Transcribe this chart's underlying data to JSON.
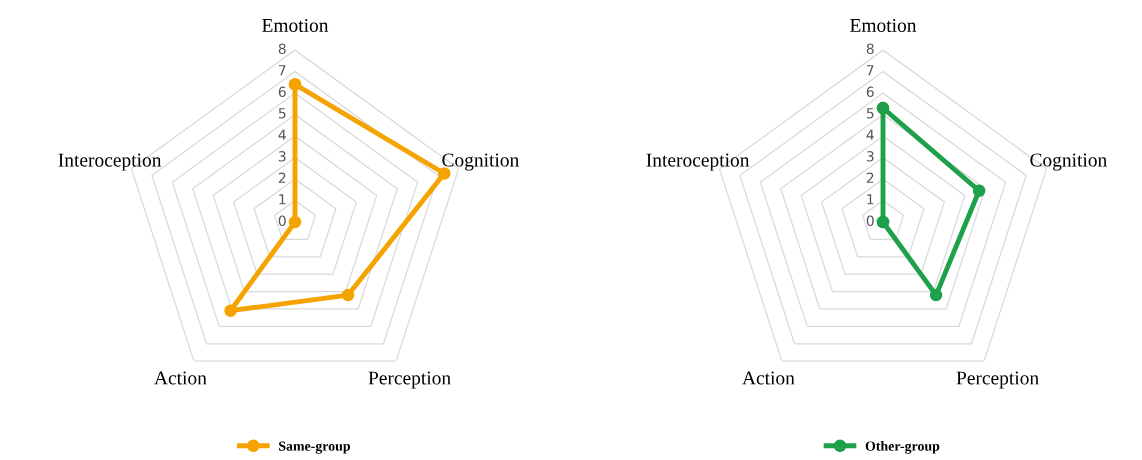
{
  "chart_data": [
    {
      "type": "radar",
      "categories": [
        "Emotion",
        "Cognition",
        "Perception",
        "Action",
        "Interoception"
      ],
      "ylim": [
        0,
        8
      ],
      "yticks": [
        0,
        1,
        2,
        3,
        4,
        5,
        6,
        7,
        8
      ],
      "grid": true,
      "legend": "bottom",
      "marker": "circle",
      "series": [
        {
          "name": "Same-group",
          "color": "#f5a300",
          "values": [
            6.4,
            7.3,
            4.2,
            5.1,
            0
          ]
        }
      ]
    },
    {
      "type": "radar",
      "categories": [
        "Emotion",
        "Cognition",
        "Perception",
        "Action",
        "Interoception"
      ],
      "ylim": [
        0,
        8
      ],
      "yticks": [
        0,
        1,
        2,
        3,
        4,
        5,
        6,
        7,
        8
      ],
      "grid": true,
      "legend": "bottom",
      "marker": "circle",
      "series": [
        {
          "name": "Other-group",
          "color": "#1fa04a",
          "values": [
            5.3,
            4.7,
            4.2,
            0,
            0
          ]
        }
      ]
    }
  ]
}
